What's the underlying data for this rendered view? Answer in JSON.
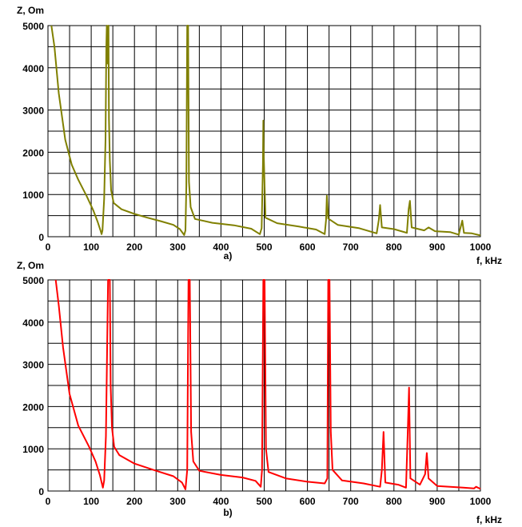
{
  "chart_data": [
    {
      "type": "line",
      "caption": "a)",
      "ylabel": "Z, Om",
      "xlabel": "f, kHz",
      "xlim": [
        0,
        1000
      ],
      "ylim": [
        0,
        5000
      ],
      "x_ticks": [
        "0",
        "100",
        "200",
        "300",
        "400",
        "500",
        "600",
        "700",
        "800",
        "900",
        "1000"
      ],
      "y_ticks": [
        "0",
        "1000",
        "2000",
        "3000",
        "4000",
        "5000"
      ],
      "grid": true,
      "line_color": "#808000",
      "series": [
        {
          "points": [
            [
              8,
              5000
            ],
            [
              15,
              4500
            ],
            [
              25,
              3400
            ],
            [
              40,
              2300
            ],
            [
              55,
              1700
            ],
            [
              70,
              1350
            ],
            [
              90,
              950
            ],
            [
              105,
              620
            ],
            [
              115,
              350
            ],
            [
              122,
              130
            ],
            [
              124,
              60
            ],
            [
              126,
              150
            ],
            [
              130,
              900
            ],
            [
              133,
              2300
            ],
            [
              135,
              4500
            ],
            [
              136,
              5000
            ],
            [
              138,
              4100
            ],
            [
              140,
              5000
            ],
            [
              141,
              2800
            ],
            [
              143,
              1800
            ],
            [
              146,
              1100
            ],
            [
              152,
              800
            ],
            [
              170,
              650
            ],
            [
              200,
              540
            ],
            [
              230,
              450
            ],
            [
              260,
              370
            ],
            [
              290,
              280
            ],
            [
              305,
              180
            ],
            [
              315,
              40
            ],
            [
              318,
              150
            ],
            [
              320,
              1200
            ],
            [
              322,
              5000
            ],
            [
              324,
              5000
            ],
            [
              326,
              1300
            ],
            [
              330,
              700
            ],
            [
              340,
              420
            ],
            [
              380,
              330
            ],
            [
              430,
              270
            ],
            [
              470,
              190
            ],
            [
              490,
              60
            ],
            [
              494,
              200
            ],
            [
              497,
              1700
            ],
            [
              498,
              2750
            ],
            [
              499,
              1900
            ],
            [
              503,
              450
            ],
            [
              530,
              320
            ],
            [
              580,
              240
            ],
            [
              620,
              170
            ],
            [
              640,
              60
            ],
            [
              643,
              400
            ],
            [
              645,
              970
            ],
            [
              648,
              430
            ],
            [
              670,
              280
            ],
            [
              720,
              200
            ],
            [
              760,
              80
            ],
            [
              765,
              400
            ],
            [
              768,
              750
            ],
            [
              772,
              220
            ],
            [
              800,
              180
            ],
            [
              830,
              90
            ],
            [
              834,
              650
            ],
            [
              837,
              850
            ],
            [
              841,
              220
            ],
            [
              870,
              150
            ],
            [
              880,
              220
            ],
            [
              895,
              130
            ],
            [
              930,
              110
            ],
            [
              950,
              50
            ],
            [
              955,
              260
            ],
            [
              958,
              380
            ],
            [
              962,
              90
            ],
            [
              980,
              80
            ],
            [
              1000,
              30
            ]
          ]
        }
      ]
    },
    {
      "type": "line",
      "caption": "b)",
      "ylabel": "Z, Om",
      "xlabel": "f, kHz",
      "xlim": [
        0,
        1000
      ],
      "ylim": [
        0,
        5000
      ],
      "x_ticks": [
        "0",
        "100",
        "200",
        "300",
        "400",
        "500",
        "600",
        "700",
        "800",
        "900",
        "1000"
      ],
      "y_ticks": [
        "0",
        "1000",
        "2000",
        "3000",
        "4000",
        "5000"
      ],
      "grid": true,
      "line_color": "#ff0000",
      "series": [
        {
          "points": [
            [
              18,
              5000
            ],
            [
              25,
              4400
            ],
            [
              35,
              3400
            ],
            [
              50,
              2300
            ],
            [
              70,
              1550
            ],
            [
              95,
              1050
            ],
            [
              110,
              700
            ],
            [
              120,
              380
            ],
            [
              127,
              80
            ],
            [
              130,
              250
            ],
            [
              134,
              1300
            ],
            [
              137,
              3500
            ],
            [
              139,
              5000
            ],
            [
              143,
              5000
            ],
            [
              145,
              2500
            ],
            [
              148,
              1500
            ],
            [
              153,
              1050
            ],
            [
              165,
              850
            ],
            [
              200,
              650
            ],
            [
              250,
              480
            ],
            [
              290,
              350
            ],
            [
              310,
              200
            ],
            [
              318,
              40
            ],
            [
              322,
              500
            ],
            [
              325,
              5000
            ],
            [
              328,
              5000
            ],
            [
              331,
              1400
            ],
            [
              336,
              700
            ],
            [
              350,
              480
            ],
            [
              400,
              380
            ],
            [
              450,
              320
            ],
            [
              480,
              240
            ],
            [
              492,
              100
            ],
            [
              495,
              500
            ],
            [
              498,
              5000
            ],
            [
              501,
              5000
            ],
            [
              504,
              1000
            ],
            [
              510,
              450
            ],
            [
              550,
              300
            ],
            [
              600,
              220
            ],
            [
              640,
              180
            ],
            [
              646,
              300
            ],
            [
              648,
              5000
            ],
            [
              651,
              5000
            ],
            [
              654,
              1400
            ],
            [
              658,
              500
            ],
            [
              680,
              250
            ],
            [
              730,
              180
            ],
            [
              768,
              100
            ],
            [
              772,
              500
            ],
            [
              776,
              1400
            ],
            [
              780,
              200
            ],
            [
              810,
              150
            ],
            [
              828,
              80
            ],
            [
              832,
              1400
            ],
            [
              835,
              2450
            ],
            [
              838,
              300
            ],
            [
              860,
              150
            ],
            [
              872,
              400
            ],
            [
              876,
              900
            ],
            [
              880,
              300
            ],
            [
              900,
              120
            ],
            [
              960,
              80
            ],
            [
              985,
              60
            ],
            [
              990,
              100
            ],
            [
              1000,
              50
            ]
          ]
        }
      ]
    }
  ]
}
